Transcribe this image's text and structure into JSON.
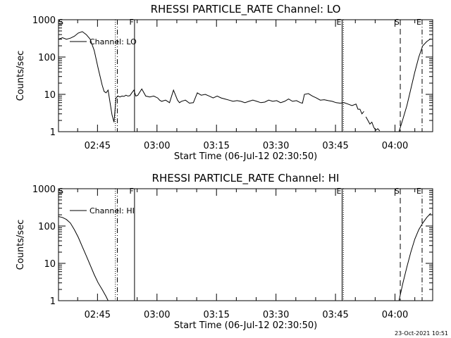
{
  "footer": {
    "timestamp": "23-Oct-2021 10:51"
  },
  "chart_data": [
    {
      "type": "line",
      "title": "RHESSI PARTICLE_RATE Channel: LO",
      "xlabel": "Start Time (06-Jul-12 02:30:50)",
      "ylabel": "Counts/sec",
      "yscale": "log",
      "xlim": [
        "02:35:10",
        "04:09:30"
      ],
      "ylim": [
        1,
        1000
      ],
      "grid": false,
      "legend_position": "top-left",
      "x_ticks": [
        "02:45",
        "03:00",
        "03:15",
        "03:30",
        "03:45",
        "04:00"
      ],
      "y_ticks": [
        "1",
        "10",
        "100",
        "1000"
      ],
      "series": [
        {
          "name": "Channel: LO",
          "segments": [
            {
              "times": [
                "02:35:10",
                "02:36:10",
                "02:37:10",
                "02:38:10",
                "02:39:10",
                "02:40:10",
                "02:41:10",
                "02:42:10",
                "02:43:10",
                "02:44:10",
                "02:45:10",
                "02:45:40",
                "02:46:10",
                "02:46:40",
                "02:47:10",
                "02:47:40",
                "02:48:10",
                "02:48:40",
                "02:49:10",
                "02:49:40",
                "02:50:10",
                "02:50:40",
                "02:51:10",
                "02:51:40",
                "02:52:10",
                "02:52:40",
                "02:53:10",
                "02:53:40",
                "02:54:10",
                "02:54:40",
                "02:55:10",
                "02:56:10",
                "02:57:10",
                "02:58:10",
                "02:59:10",
                "03:00:10",
                "03:00:40",
                "03:01:10",
                "03:02:10",
                "03:03:10",
                "03:04:10",
                "03:05:10",
                "03:05:40",
                "03:06:10",
                "03:07:10",
                "03:08:10",
                "03:09:10",
                "03:10:10",
                "03:11:10",
                "03:12:10",
                "03:13:10",
                "03:14:10",
                "03:15:10",
                "03:16:10",
                "03:17:10",
                "03:18:10",
                "03:19:10",
                "03:20:10",
                "03:21:10",
                "03:22:10",
                "03:23:10",
                "03:24:10",
                "03:25:10",
                "03:26:10",
                "03:27:10",
                "03:28:10",
                "03:29:10",
                "03:30:10",
                "03:31:10",
                "03:32:10",
                "03:33:10",
                "03:34:10",
                "03:35:10",
                "03:36:10",
                "03:36:40",
                "03:37:10",
                "03:38:10",
                "03:39:10",
                "03:40:10",
                "03:41:10",
                "03:42:10",
                "03:43:10",
                "03:44:10",
                "03:45:10",
                "03:46:10",
                "03:47:10",
                "03:48:10",
                "03:49:10",
                "03:50:10",
                "03:50:40",
                "03:51:10",
                "03:51:40",
                "03:52:10"
              ],
              "values": [
                300,
                330,
                300,
                320,
                360,
                440,
                480,
                400,
                300,
                150,
                50,
                30,
                18,
                12,
                11,
                13,
                6,
                2.8,
                1.8,
                8,
                9,
                8.5,
                9,
                8.8,
                9.5,
                9,
                9.2,
                11,
                13,
                9,
                9.5,
                14,
                9,
                8.5,
                9,
                8,
                7,
                6.5,
                7,
                6,
                13,
                7,
                6,
                6.5,
                7,
                5.8,
                6,
                11,
                9.5,
                10,
                9,
                8,
                9,
                8,
                7.5,
                7,
                6.5,
                6.8,
                6.5,
                6,
                6.5,
                7,
                6.5,
                6,
                6.2,
                7,
                6.5,
                6.8,
                6,
                6.5,
                7.5,
                6.5,
                6.8,
                6,
                5.8,
                10,
                10.5,
                9,
                8,
                7,
                7.2,
                6.8,
                6.5,
                6,
                5.8,
                6,
                5.5,
                5,
                5.5,
                4,
                4,
                3,
                3.5
              ]
            },
            {
              "times": [
                "03:52:40",
                "03:53:10",
                "03:53:40",
                "03:54:10",
                "03:54:40",
                "03:55:10",
                "03:55:40",
                "03:56:10"
              ],
              "values": [
                2.5,
                2,
                1.6,
                1.8,
                1.3,
                1.1,
                1.2,
                1.05
              ]
            },
            {
              "times": [
                "04:01:00",
                "04:02:00",
                "04:03:00",
                "04:04:00",
                "04:05:00",
                "04:06:00",
                "04:07:00",
                "04:08:00",
                "04:09:00"
              ],
              "values": [
                1,
                2.2,
                5,
                14,
                40,
                100,
                200,
                260,
                310
              ]
            }
          ]
        }
      ],
      "markers": [
        {
          "label": "E",
          "time": "04:06:50",
          "style": "dash-dot"
        },
        {
          "label": "S",
          "time": "04:01:20",
          "style": "dashed"
        },
        {
          "label": "E",
          "time": "03:46:40",
          "style": "solid"
        },
        {
          "label": "",
          "time": "03:47:00",
          "style": "dotted"
        },
        {
          "label": "F",
          "time": "02:54:20",
          "style": "solid"
        },
        {
          "label": "",
          "time": "02:49:30",
          "style": "dotted"
        },
        {
          "label": "",
          "time": "02:50:00",
          "style": "dash-dot"
        },
        {
          "label": "S",
          "time": "02:35:20",
          "style": "none"
        }
      ]
    },
    {
      "type": "line",
      "title": "RHESSI PARTICLE_RATE Channel: HI",
      "xlabel": "Start Time (06-Jul-12 02:30:50)",
      "ylabel": "Counts/sec",
      "yscale": "log",
      "xlim": [
        "02:35:10",
        "04:09:30"
      ],
      "ylim": [
        1,
        1000
      ],
      "grid": false,
      "legend_position": "top-left",
      "x_ticks": [
        "02:45",
        "03:00",
        "03:15",
        "03:30",
        "03:45",
        "04:00"
      ],
      "y_ticks": [
        "1",
        "10",
        "100",
        "1000"
      ],
      "series": [
        {
          "name": "Channel: HI",
          "segments": [
            {
              "times": [
                "02:35:10",
                "02:36:10",
                "02:37:10",
                "02:38:10",
                "02:39:10",
                "02:40:10",
                "02:41:10",
                "02:42:10",
                "02:43:10",
                "02:44:10",
                "02:45:10",
                "02:46:10",
                "02:47:10",
                "02:47:40"
              ],
              "values": [
                180,
                170,
                150,
                120,
                80,
                50,
                28,
                16,
                9,
                5,
                3,
                2,
                1.3,
                1
              ]
            },
            {
              "times": [
                "04:01:00",
                "04:02:00",
                "04:03:00",
                "04:04:00",
                "04:05:00",
                "04:06:00",
                "04:07:00",
                "04:08:00",
                "04:09:00"
              ],
              "values": [
                1,
                3,
                8,
                20,
                45,
                80,
                120,
                170,
                220
              ]
            }
          ]
        }
      ],
      "markers": [
        {
          "label": "E",
          "time": "04:06:50",
          "style": "dash-dot"
        },
        {
          "label": "S",
          "time": "04:01:20",
          "style": "dashed"
        },
        {
          "label": "E",
          "time": "03:46:40",
          "style": "solid"
        },
        {
          "label": "",
          "time": "03:47:00",
          "style": "dotted"
        },
        {
          "label": "F",
          "time": "02:54:20",
          "style": "solid"
        },
        {
          "label": "",
          "time": "02:49:30",
          "style": "dotted"
        },
        {
          "label": "",
          "time": "02:50:00",
          "style": "dash-dot"
        },
        {
          "label": "S",
          "time": "02:35:20",
          "style": "none"
        }
      ]
    }
  ]
}
